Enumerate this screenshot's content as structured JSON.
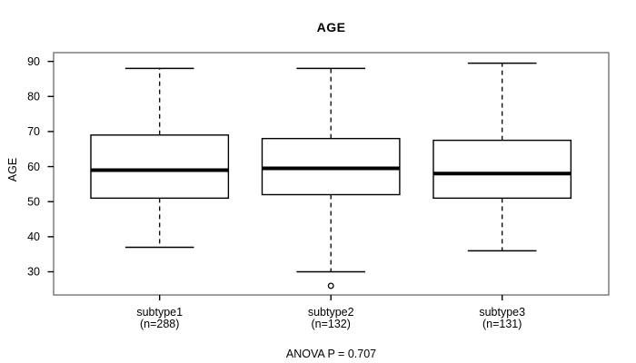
{
  "chart_data": {
    "type": "boxplot",
    "title": "AGE",
    "ylabel": "AGE",
    "xlabel": "",
    "annotation": "ANOVA P = 0.707",
    "ylim": [
      23.4,
      92.5
    ],
    "yticks": [
      30,
      40,
      50,
      60,
      70,
      80,
      90
    ],
    "grid": false,
    "legend": null,
    "groups": [
      {
        "label": "subtype1",
        "n_label": "(n=288)",
        "n": 288,
        "whisker_low": 37,
        "q1": 51,
        "median": 59,
        "q3": 69,
        "whisker_high": 88,
        "outliers": []
      },
      {
        "label": "subtype2",
        "n_label": "(n=132)",
        "n": 132,
        "whisker_low": 30,
        "q1": 52,
        "median": 59.5,
        "q3": 68,
        "whisker_high": 88,
        "outliers": [
          26
        ]
      },
      {
        "label": "subtype3",
        "n_label": "(n=131)",
        "n": 131,
        "whisker_low": 36,
        "q1": 51,
        "median": 58,
        "q3": 67.5,
        "whisker_high": 89.5,
        "outliers": []
      }
    ],
    "colors": {
      "line": "#000000",
      "panel_border": "#757575",
      "background": "#ffffff"
    }
  }
}
